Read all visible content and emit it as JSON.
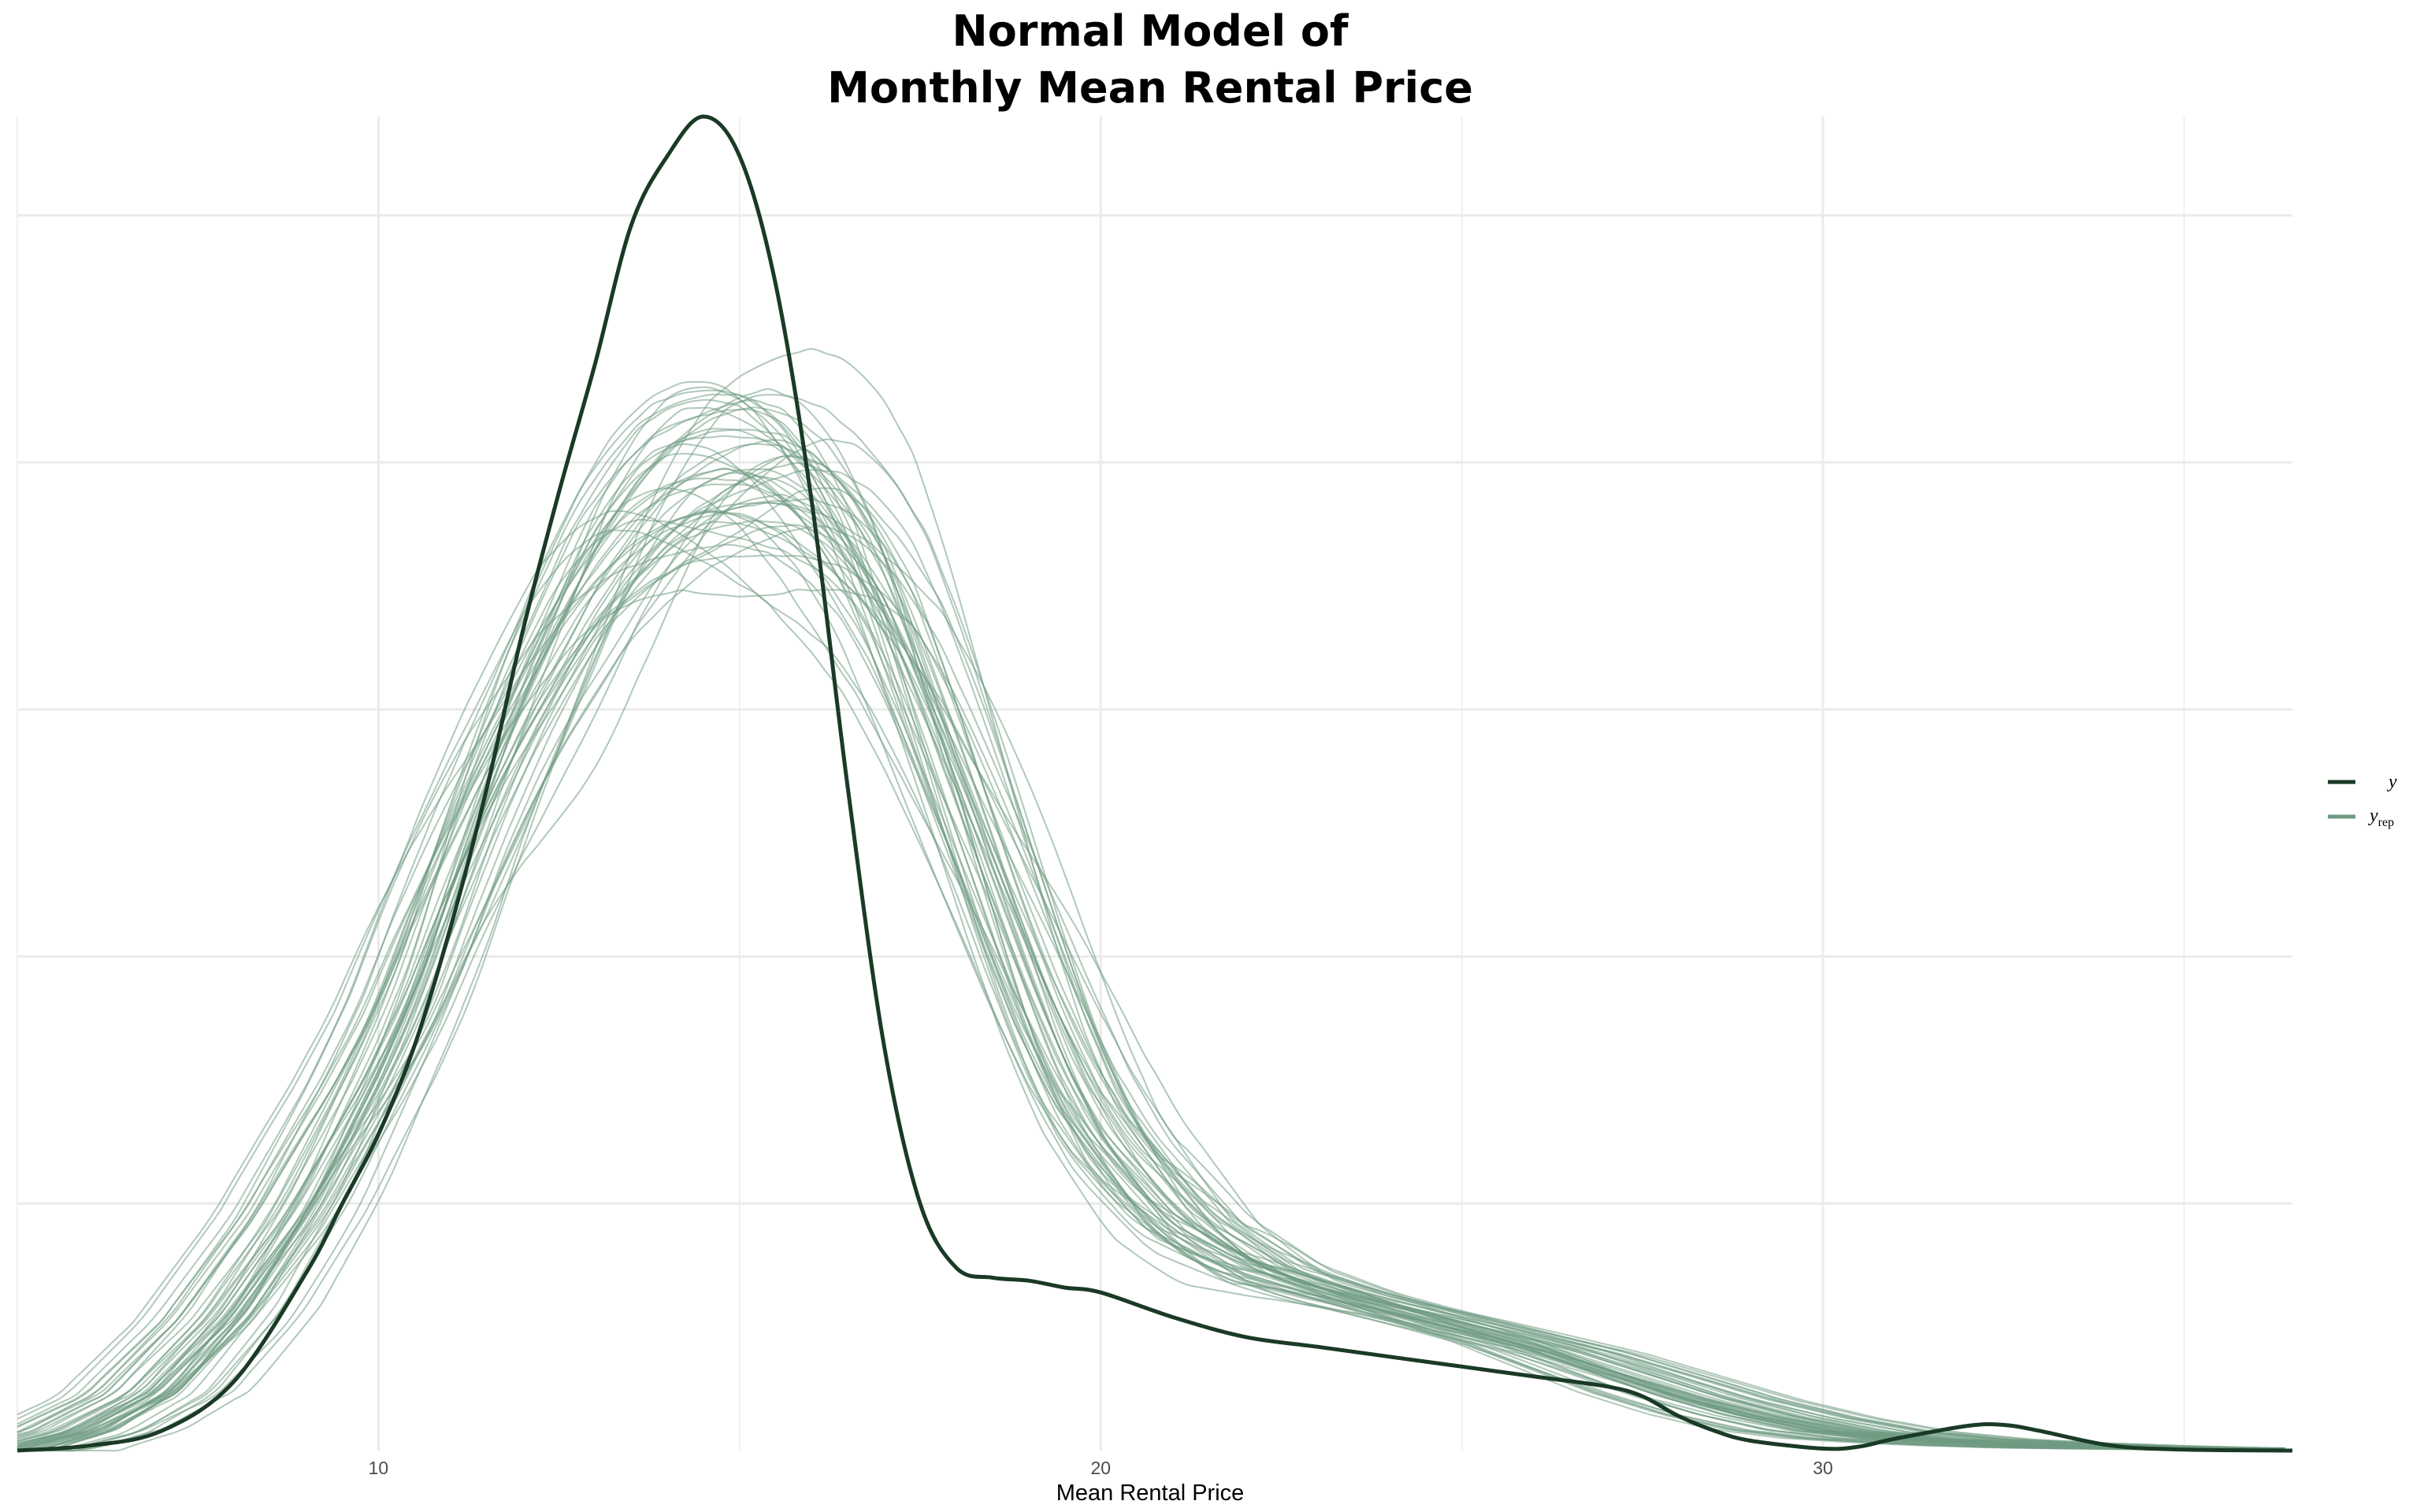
{
  "chart_data": {
    "type": "line",
    "title": [
      "Normal Model of",
      "Monthly Mean Rental Price"
    ],
    "xlabel": "Mean Rental Price",
    "ylabel": "",
    "xlim": [
      5,
      36.5
    ],
    "ylim": [
      0,
      0.135
    ],
    "x_ticks": [
      10,
      20,
      30
    ],
    "x_tick_labels": [
      "10",
      "20",
      "30"
    ],
    "y_gridlines": [
      0.025,
      0.05,
      0.075,
      0.1,
      0.125
    ],
    "grid": true,
    "legend_position": "right",
    "replicate_count": 50,
    "colors": {
      "observed": "#1a3a26",
      "replicates": "#6f9a81",
      "grid": "#ebebeb"
    },
    "series": [
      {
        "name": "y",
        "label_main": "y",
        "x": [
          5,
          6,
          7,
          8,
          9,
          9.5,
          10,
          10.5,
          11,
          11.5,
          12,
          12.5,
          13,
          13.5,
          14,
          14.5,
          15,
          15.5,
          16,
          16.5,
          17,
          17.5,
          18,
          18.5,
          19,
          19.5,
          20,
          21,
          22,
          23,
          24,
          25,
          26,
          27,
          27.5,
          28,
          28.5,
          29,
          30,
          30.5,
          31,
          32,
          32.5,
          33,
          34,
          35,
          36.5
        ],
        "y": [
          0,
          0.0005,
          0.002,
          0.007,
          0.018,
          0.025,
          0.032,
          0.041,
          0.053,
          0.067,
          0.083,
          0.097,
          0.11,
          0.124,
          0.131,
          0.135,
          0.131,
          0.118,
          0.096,
          0.067,
          0.041,
          0.025,
          0.0185,
          0.0175,
          0.0172,
          0.0165,
          0.016,
          0.0135,
          0.0115,
          0.0105,
          0.0095,
          0.0085,
          0.0075,
          0.0065,
          0.0055,
          0.0035,
          0.002,
          0.001,
          0.0002,
          0.0004,
          0.0012,
          0.0025,
          0.0026,
          0.002,
          0.0005,
          0.0001,
          0
        ]
      },
      {
        "name": "y_rep",
        "label_main": "y",
        "label_sub": "rep",
        "shape": {
          "x": [
            5,
            6,
            7,
            8,
            9,
            9.5,
            10,
            10.5,
            11,
            11.5,
            12,
            12.5,
            13,
            13.5,
            14,
            14.5,
            15,
            15.5,
            16,
            16.5,
            17,
            17.5,
            18,
            18.5,
            19,
            19.5,
            20,
            21,
            22,
            23,
            24,
            25,
            26,
            27,
            28,
            29,
            30,
            31,
            32,
            33,
            34,
            35,
            36.5
          ],
          "y": [
            0,
            0.002,
            0.006,
            0.014,
            0.025,
            0.032,
            0.039,
            0.047,
            0.057,
            0.066,
            0.074,
            0.081,
            0.088,
            0.093,
            0.097,
            0.099,
            0.1,
            0.1,
            0.098,
            0.094,
            0.088,
            0.079,
            0.069,
            0.059,
            0.049,
            0.04,
            0.033,
            0.024,
            0.019,
            0.0165,
            0.0145,
            0.0125,
            0.0105,
            0.008,
            0.0055,
            0.0035,
            0.002,
            0.0012,
            0.0008,
            0.0005,
            0.0003,
            0.0002,
            0.0001
          ]
        }
      }
    ]
  }
}
